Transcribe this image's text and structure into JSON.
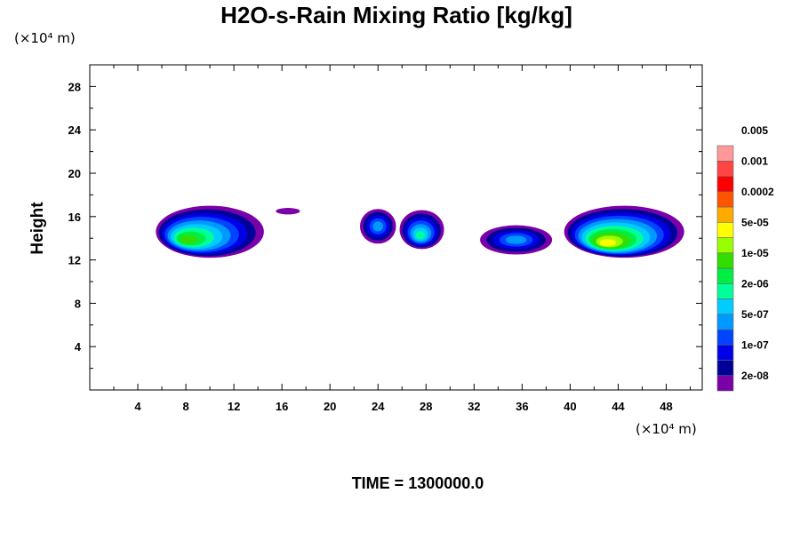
{
  "chart_data": {
    "type": "contour",
    "title": "H2O-s-Rain Mixing Ratio [kg/kg]",
    "ylabel": "Height",
    "x_unit": "(×10⁴ m)",
    "y_unit": "(×10⁴ m)",
    "xlim": [
      0,
      51
    ],
    "ylim": [
      0,
      30
    ],
    "x_ticks": [
      4,
      8,
      12,
      16,
      20,
      24,
      28,
      32,
      36,
      40,
      44,
      48
    ],
    "y_ticks": [
      4,
      8,
      12,
      16,
      20,
      24,
      28
    ],
    "grid": false,
    "time_label": "TIME = 1300000.0",
    "colorbar": {
      "placement": "right",
      "colors": [
        "#7a00a8",
        "#000099",
        "#0000e6",
        "#0044ff",
        "#0099ff",
        "#00ccff",
        "#00ff99",
        "#00ee44",
        "#33dd00",
        "#99ff00",
        "#ffff00",
        "#ffaa00",
        "#ff5500",
        "#ff0000",
        "#ff4444",
        "#ff9999"
      ],
      "labels": [
        "2e-08",
        "1e-07",
        "5e-07",
        "2e-06",
        "1e-05",
        "5e-05",
        "0.0002",
        "0.001",
        "0.005"
      ]
    },
    "cells": [
      {
        "x_range": [
          5.5,
          14.5
        ],
        "z_range": [
          12.2,
          17.0
        ],
        "peak_x": 8,
        "peak_z": 13.8,
        "peak_level": "1e-05"
      },
      {
        "x_range": [
          15.5,
          17.5
        ],
        "z_range": [
          16.2,
          16.8
        ],
        "peak_level": "2e-08"
      },
      {
        "x_range": [
          22.5,
          25.5
        ],
        "z_range": [
          13.5,
          16.7
        ],
        "peak_level": "5e-07"
      },
      {
        "x_range": [
          25.8,
          29.5
        ],
        "z_range": [
          13.0,
          16.6
        ],
        "peak_x": 27.5,
        "peak_z": 14.2,
        "peak_level": "2e-06"
      },
      {
        "x_range": [
          32.5,
          38.5
        ],
        "z_range": [
          12.5,
          15.2
        ],
        "peak_level": "5e-07"
      },
      {
        "x_range": [
          39.5,
          49.5
        ],
        "z_range": [
          12.2,
          17.0
        ],
        "peak_x": 43,
        "peak_z": 13.5,
        "peak_level": "5e-05"
      }
    ]
  }
}
